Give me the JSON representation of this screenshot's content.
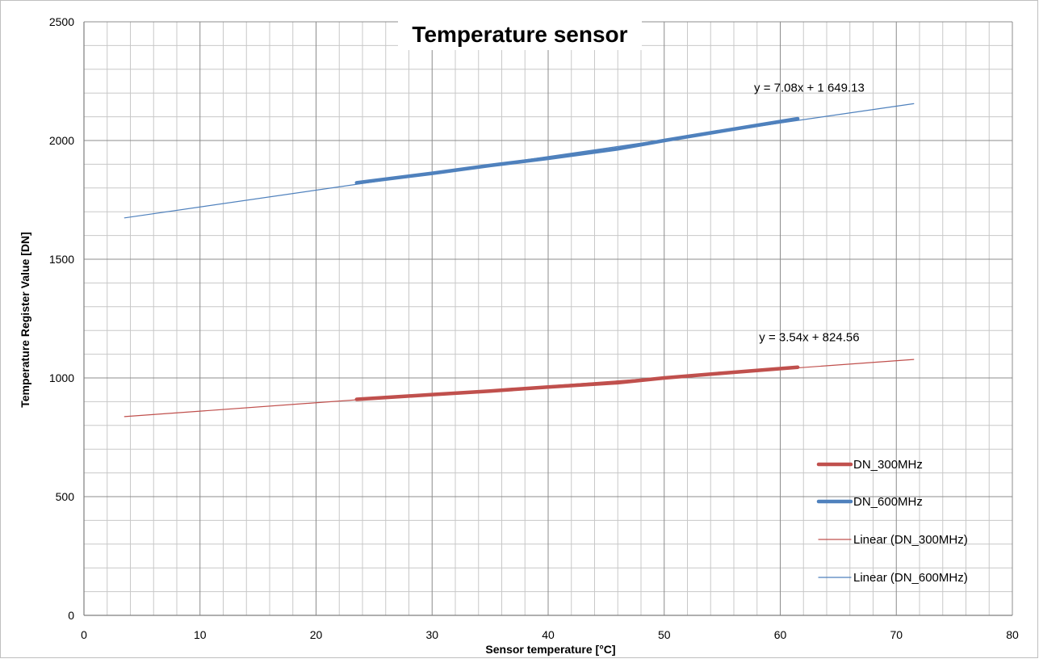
{
  "chart_data": {
    "type": "line",
    "title": "Temperature sensor",
    "xlabel": "Sensor temperature [°C]",
    "ylabel": "Temperature Register Value [DN]",
    "xlim": [
      0,
      80
    ],
    "ylim": [
      0,
      2500
    ],
    "x_ticks": [
      0,
      10,
      20,
      30,
      40,
      50,
      60,
      70,
      80
    ],
    "y_ticks": [
      0,
      500,
      1000,
      1500,
      2000,
      2500
    ],
    "grid": true,
    "legend_position": "right",
    "series": [
      {
        "name": "DN_300MHz",
        "color": "#C0504D",
        "style": "thick",
        "x": [
          23.5,
          30,
          35,
          40,
          46,
          50,
          55,
          61.5
        ],
        "y": [
          910,
          930,
          945,
          962,
          980,
          1000,
          1020,
          1045
        ]
      },
      {
        "name": "DN_600MHz",
        "color": "#4F81BD",
        "style": "thick",
        "x": [
          23.5,
          30,
          35,
          40,
          46,
          50,
          55,
          61.5
        ],
        "y": [
          1822,
          1862,
          1895,
          1925,
          1965,
          2000,
          2040,
          2092
        ]
      },
      {
        "name": "Linear (DN_300MHz)",
        "color": "#C0504D",
        "style": "thin",
        "x": [
          3.5,
          71.5
        ],
        "y": [
          837,
          1078
        ]
      },
      {
        "name": "Linear (DN_600MHz)",
        "color": "#4F81BD",
        "style": "thin",
        "x": [
          3.5,
          71.5
        ],
        "y": [
          1674,
          2155
        ]
      }
    ],
    "annotations": [
      {
        "text": "y = 7.08x + 1 649.13",
        "x": 62.5,
        "y": 2205
      },
      {
        "text": "y = 3.54x + 824.56",
        "x": 62.5,
        "y": 1155
      }
    ]
  }
}
